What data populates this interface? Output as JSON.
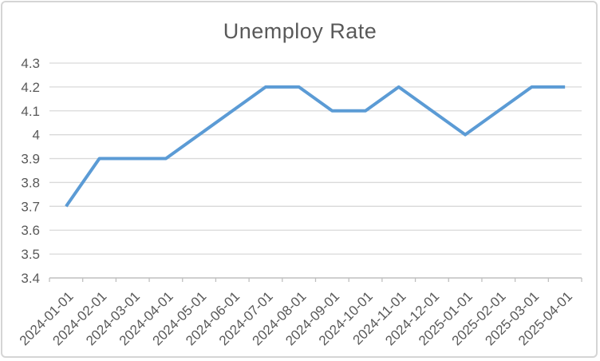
{
  "chart": {
    "colors": {
      "line": "#5B9BD5",
      "grid": "#D9D9D9",
      "axis": "#BFBFBF",
      "text": "#595959",
      "title_text": "#595959",
      "frame_border": "#D5D5D5",
      "background": "#FFFFFF"
    }
  },
  "chart_data": {
    "type": "line",
    "title": "Unemploy Rate",
    "xlabel": "",
    "ylabel": "",
    "x": [
      "2024-01-01",
      "2024-02-01",
      "2024-03-01",
      "2024-04-01",
      "2024-05-01",
      "2024-06-01",
      "2024-07-01",
      "2024-08-01",
      "2024-09-01",
      "2024-10-01",
      "2024-11-01",
      "2024-12-01",
      "2025-01-01",
      "2025-02-01",
      "2025-03-01",
      "2025-04-01"
    ],
    "values": [
      3.7,
      3.9,
      3.9,
      3.9,
      4.0,
      4.1,
      4.2,
      4.2,
      4.1,
      4.1,
      4.2,
      4.1,
      4.0,
      4.1,
      4.2,
      4.2
    ],
    "ylim": [
      3.4,
      4.3
    ],
    "yticks": [
      3.4,
      3.5,
      3.6,
      3.7,
      3.8,
      3.9,
      4.0,
      4.1,
      4.2,
      4.3
    ],
    "ytick_labels": [
      "3.4",
      "3.5",
      "3.6",
      "3.7",
      "3.8",
      "3.9",
      "4",
      "4.1",
      "4.2",
      "4.3"
    ],
    "grid": true,
    "legend": "none",
    "x_label_rotation_deg": -45
  }
}
